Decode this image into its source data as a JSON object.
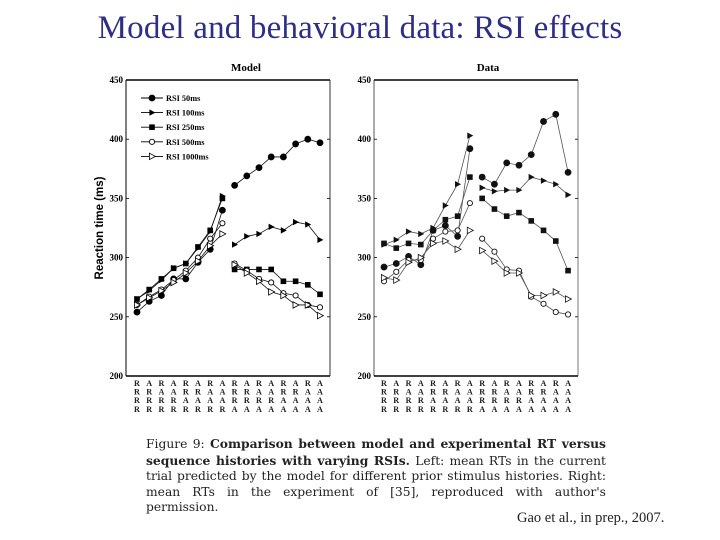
{
  "slide": {
    "title": "Model and behavioral data: RSI effects",
    "citation": "Gao et al., in prep., 2007."
  },
  "caption": {
    "figure_label": "Figure 9:",
    "bold_text": "Comparison between model and experimental RT versus sequence histories with varying RSIs.",
    "body_text": "Left: mean RTs in the current trial predicted by the model for different prior stimulus histories. Right: mean RTs in the experiment of [35], reproduced with author's permission."
  },
  "chart_data": [
    {
      "type": "line",
      "title": "Model",
      "xlabel": "",
      "ylabel": "Reaction time (ms)",
      "ylim": [
        200,
        450
      ],
      "yticks": [
        200,
        250,
        300,
        350,
        400,
        450
      ],
      "grid": false,
      "legend": "top-left",
      "x_label_rows": [
        [
          "R",
          "A",
          "R",
          "A",
          "R",
          "A",
          "R",
          "A",
          "R",
          "A",
          "R",
          "A",
          "R",
          "A",
          "R",
          "A"
        ],
        [
          "R",
          "R",
          "A",
          "A",
          "R",
          "R",
          "A",
          "A",
          "R",
          "R",
          "A",
          "A",
          "R",
          "R",
          "A",
          "A"
        ],
        [
          "R",
          "R",
          "R",
          "R",
          "A",
          "A",
          "A",
          "A",
          "R",
          "R",
          "R",
          "R",
          "A",
          "A",
          "A",
          "A"
        ],
        [
          "R",
          "R",
          "R",
          "R",
          "R",
          "R",
          "R",
          "R",
          "A",
          "A",
          "A",
          "A",
          "A",
          "A",
          "A",
          "A"
        ]
      ],
      "segments": [
        [
          0,
          7
        ],
        [
          8,
          15
        ]
      ],
      "series": [
        {
          "name": "RSI  50ms",
          "marker": "filled-circle",
          "values": [
            254,
            263,
            268,
            282,
            282,
            296,
            307,
            340,
            361,
            369,
            376,
            385,
            385,
            396,
            400,
            397
          ]
        },
        {
          "name": "RSI  100ms",
          "marker": "filled-triangle",
          "values": [
            265,
            272,
            281,
            291,
            295,
            308,
            322,
            352,
            311,
            318,
            320,
            326,
            323,
            330,
            328,
            315
          ]
        },
        {
          "name": "RSI  250ms",
          "marker": "filled-square",
          "values": [
            265,
            273,
            282,
            291,
            295,
            309,
            323,
            350,
            290,
            290,
            290,
            290,
            280,
            280,
            277,
            269
          ]
        },
        {
          "name": "RSI  500ms",
          "marker": "open-circle",
          "values": [
            260,
            267,
            273,
            281,
            289,
            300,
            316,
            329,
            295,
            289,
            282,
            279,
            270,
            268,
            260,
            258
          ]
        },
        {
          "name": "RSI 1000ms",
          "marker": "open-triangle",
          "values": [
            260,
            266,
            272,
            279,
            287,
            297,
            310,
            320,
            294,
            287,
            280,
            271,
            268,
            260,
            260,
            251
          ]
        }
      ]
    },
    {
      "type": "line",
      "title": "Data",
      "xlabel": "",
      "ylabel": "",
      "ylim": [
        200,
        450
      ],
      "yticks": [
        200,
        250,
        300,
        350,
        400,
        450
      ],
      "grid": false,
      "legend": "none",
      "x_label_rows": [
        [
          "R",
          "A",
          "R",
          "A",
          "R",
          "A",
          "R",
          "A",
          "R",
          "A",
          "R",
          "A",
          "R",
          "A",
          "R",
          "A"
        ],
        [
          "R",
          "R",
          "A",
          "A",
          "R",
          "R",
          "A",
          "A",
          "R",
          "R",
          "A",
          "A",
          "R",
          "R",
          "A",
          "A"
        ],
        [
          "R",
          "R",
          "R",
          "R",
          "A",
          "A",
          "A",
          "A",
          "R",
          "R",
          "R",
          "R",
          "A",
          "A",
          "A",
          "A"
        ],
        [
          "R",
          "R",
          "R",
          "R",
          "R",
          "R",
          "R",
          "R",
          "A",
          "A",
          "A",
          "A",
          "A",
          "A",
          "A",
          "A"
        ]
      ],
      "segments": [
        [
          0,
          7
        ],
        [
          8,
          15
        ]
      ],
      "series": [
        {
          "name": "RSI  50ms",
          "marker": "filled-circle",
          "values": [
            292,
            295,
            301,
            294,
            323,
            327,
            318,
            392,
            368,
            362,
            380,
            378,
            387,
            415,
            421,
            372
          ]
        },
        {
          "name": "RSI  100ms",
          "marker": "filled-triangle",
          "values": [
            311,
            315,
            322,
            320,
            325,
            344,
            362,
            403,
            359,
            356,
            357,
            357,
            368,
            365,
            362,
            353
          ]
        },
        {
          "name": "RSI  250ms",
          "marker": "filled-square",
          "values": [
            312,
            308,
            312,
            311,
            323,
            332,
            335,
            368,
            350,
            341,
            335,
            338,
            331,
            323,
            314,
            289
          ]
        },
        {
          "name": "RSI  500ms",
          "marker": "open-circle",
          "values": [
            280,
            288,
            298,
            298,
            316,
            322,
            323,
            346,
            316,
            305,
            290,
            289,
            267,
            261,
            254,
            252
          ]
        },
        {
          "name": "RSI 1000ms",
          "marker": "open-triangle",
          "values": [
            283,
            281,
            296,
            300,
            312,
            314,
            307,
            323,
            306,
            297,
            287,
            287,
            268,
            268,
            271,
            265
          ]
        }
      ]
    }
  ]
}
